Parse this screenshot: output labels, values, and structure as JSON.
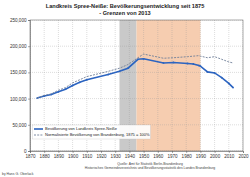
{
  "chart_data": {
    "type": "line",
    "title": "Landkreis Spree-Neiße: Bevölkerungsentwicklung seit 1875",
    "subtitle": "- Grenzen von 2013",
    "x": [
      1875,
      1880,
      1885,
      1890,
      1895,
      1900,
      1905,
      1910,
      1925,
      1933,
      1939,
      1946,
      1950,
      1964,
      1971,
      1981,
      1985,
      1989,
      1990,
      1995,
      2000,
      2005,
      2010,
      2013
    ],
    "series": [
      {
        "name": "Bevölkerung von Landkreis Spree-Neiße",
        "color": "#2c64c0",
        "marker": "circle",
        "line_style": "solid",
        "values": [
          101000,
          105000,
          108000,
          113000,
          118000,
          125000,
          131000,
          136000,
          146000,
          152000,
          158000,
          175000,
          176000,
          168000,
          169000,
          167000,
          166000,
          163000,
          162000,
          151000,
          149000,
          140000,
          129000,
          121000
        ]
      },
      {
        "name": "Normalisierte Bevölkerung von Brandenburg, 1875 = 100%",
        "color": "#6f7f99",
        "line_style": "dashed",
        "values": [
          101000,
          106000,
          109000,
          116000,
          121000,
          130000,
          136000,
          142000,
          152000,
          158000,
          165000,
          178000,
          185000,
          177000,
          178000,
          180000,
          181000,
          182000,
          181000,
          178000,
          180000,
          175000,
          170000,
          168000
        ]
      }
    ],
    "shaded_periods": [
      {
        "start": 1933,
        "end": 1945,
        "color": "#c9c9c9"
      },
      {
        "start": 1945,
        "end": 1990,
        "color": "#f6cdb0"
      }
    ],
    "xlim": [
      1870,
      2020
    ],
    "xticks": [
      1870,
      1880,
      1890,
      1900,
      1910,
      1920,
      1930,
      1940,
      1950,
      1960,
      1970,
      1980,
      1990,
      2000,
      2010,
      2020
    ],
    "ylim": [
      0,
      250000
    ],
    "yticks": [
      0,
      {
        "value": 50000,
        "label": "50,000"
      },
      {
        "value": 100000,
        "label": "100,000"
      },
      {
        "value": 150000,
        "label": "150,000"
      },
      {
        "value": 200000,
        "label": "200,000"
      },
      {
        "value": 250000,
        "label": "250,000"
      }
    ],
    "grid": true,
    "legend": "lower left",
    "source": [
      "Quelle: Amt für Statistik Berlin-Brandenburg",
      "Historisches Gemeindeverzeichnis und Bevölkerungsstatistik des Landes Brandenburg"
    ],
    "author": "by Hans G. Oberlack"
  }
}
